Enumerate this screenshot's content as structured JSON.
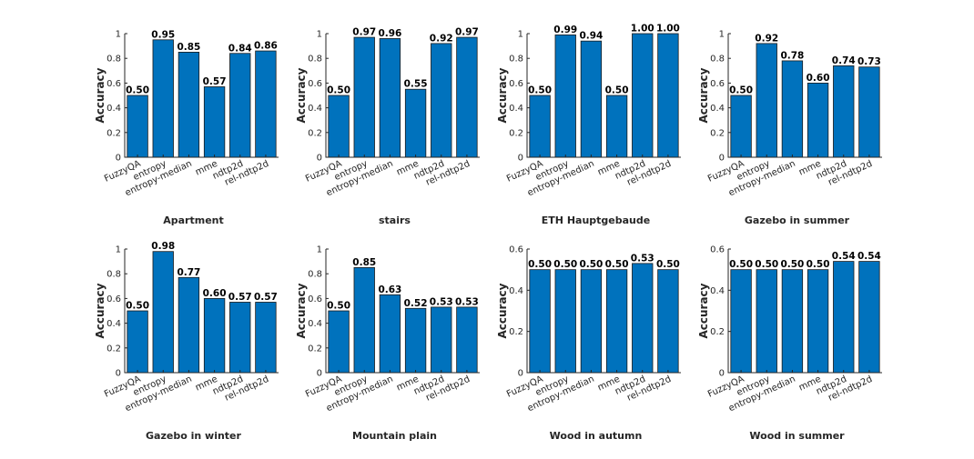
{
  "colors": {
    "bar": "#0072BD",
    "axis": "#262626"
  },
  "chart_data": [
    {
      "type": "bar",
      "title": "Apartment",
      "ylabel": "Accuracy",
      "categories": [
        "FuzzyQA",
        "entropy",
        "entropy-median",
        "mme",
        "ndtp2d",
        "rel-ndtp2d"
      ],
      "values": [
        0.5,
        0.95,
        0.85,
        0.57,
        0.84,
        0.86
      ],
      "value_labels": [
        "0.50",
        "0.95",
        "0.85",
        "0.57",
        "0.84",
        "0.86"
      ],
      "ylim": [
        0,
        1
      ],
      "yticks": [
        "0",
        "0.2",
        "0.4",
        "0.6",
        "0.8",
        "1"
      ]
    },
    {
      "type": "bar",
      "title": "stairs",
      "ylabel": "Accuracy",
      "categories": [
        "FuzzyQA",
        "entropy",
        "entropy-median",
        "mme",
        "ndtp2d",
        "rel-ndtp2d"
      ],
      "values": [
        0.5,
        0.97,
        0.96,
        0.55,
        0.92,
        0.97
      ],
      "value_labels": [
        "0.50",
        "0.97",
        "0.96",
        "0.55",
        "0.92",
        "0.97"
      ],
      "ylim": [
        0,
        1
      ],
      "yticks": [
        "0",
        "0.2",
        "0.4",
        "0.6",
        "0.8",
        "1"
      ]
    },
    {
      "type": "bar",
      "title": "ETH Hauptgebaude",
      "ylabel": "Accuracy",
      "categories": [
        "FuzzyQA",
        "entropy",
        "entropy-median",
        "mme",
        "ndtp2d",
        "rel-ndtp2d"
      ],
      "values": [
        0.5,
        0.99,
        0.94,
        0.5,
        1.0,
        1.0
      ],
      "value_labels": [
        "0.50",
        "0.99",
        "0.94",
        "0.50",
        "1.00",
        "1.00"
      ],
      "ylim": [
        0,
        1
      ],
      "yticks": [
        "0",
        "0.2",
        "0.4",
        "0.6",
        "0.8",
        "1"
      ]
    },
    {
      "type": "bar",
      "title": "Gazebo in summer",
      "ylabel": "Accuracy",
      "categories": [
        "FuzzyQA",
        "entropy",
        "entropy-median",
        "mme",
        "ndtp2d",
        "rel-ndtp2d"
      ],
      "values": [
        0.5,
        0.92,
        0.78,
        0.6,
        0.74,
        0.73
      ],
      "value_labels": [
        "0.50",
        "0.92",
        "0.78",
        "0.60",
        "0.74",
        "0.73"
      ],
      "ylim": [
        0,
        1
      ],
      "yticks": [
        "0",
        "0.2",
        "0.4",
        "0.6",
        "0.8",
        "1"
      ]
    },
    {
      "type": "bar",
      "title": "Gazebo in winter",
      "ylabel": "Accuracy",
      "categories": [
        "FuzzyQA",
        "entropy",
        "entropy-median",
        "mme",
        "ndtp2d",
        "rel-ndtp2d"
      ],
      "values": [
        0.5,
        0.98,
        0.77,
        0.6,
        0.57,
        0.57
      ],
      "value_labels": [
        "0.50",
        "0.98",
        "0.77",
        "0.60",
        "0.57",
        "0.57"
      ],
      "ylim": [
        0,
        1
      ],
      "yticks": [
        "0",
        "0.2",
        "0.4",
        "0.6",
        "0.8",
        "1"
      ]
    },
    {
      "type": "bar",
      "title": "Mountain plain",
      "ylabel": "Accuracy",
      "categories": [
        "FuzzyQA",
        "entropy",
        "entropy-median",
        "mme",
        "ndtp2d",
        "rel-ndtp2d"
      ],
      "values": [
        0.5,
        0.85,
        0.63,
        0.52,
        0.53,
        0.53
      ],
      "value_labels": [
        "0.50",
        "0.85",
        "0.63",
        "0.52",
        "0.53",
        "0.53"
      ],
      "ylim": [
        0,
        1
      ],
      "yticks": [
        "0",
        "0.2",
        "0.4",
        "0.6",
        "0.8",
        "1"
      ]
    },
    {
      "type": "bar",
      "title": "Wood in autumn",
      "ylabel": "Accuracy",
      "categories": [
        "FuzzyQA",
        "entropy",
        "entropy-median",
        "mme",
        "ndtp2d",
        "rel-ndtp2d"
      ],
      "values": [
        0.5,
        0.5,
        0.5,
        0.5,
        0.53,
        0.5
      ],
      "value_labels": [
        "0.50",
        "0.50",
        "0.50",
        "0.50",
        "0.53",
        "0.50"
      ],
      "ylim": [
        0,
        0.6
      ],
      "yticks": [
        "0",
        "0.2",
        "0.4",
        "0.6"
      ]
    },
    {
      "type": "bar",
      "title": "Wood in summer",
      "ylabel": "Accuracy",
      "categories": [
        "FuzzyQA",
        "entropy",
        "entropy-median",
        "mme",
        "ndtp2d",
        "rel-ndtp2d"
      ],
      "values": [
        0.5,
        0.5,
        0.5,
        0.5,
        0.54,
        0.54
      ],
      "value_labels": [
        "0.50",
        "0.50",
        "0.50",
        "0.50",
        "0.54",
        "0.54"
      ],
      "ylim": [
        0,
        0.6
      ],
      "yticks": [
        "0",
        "0.2",
        "0.4",
        "0.6"
      ]
    }
  ]
}
